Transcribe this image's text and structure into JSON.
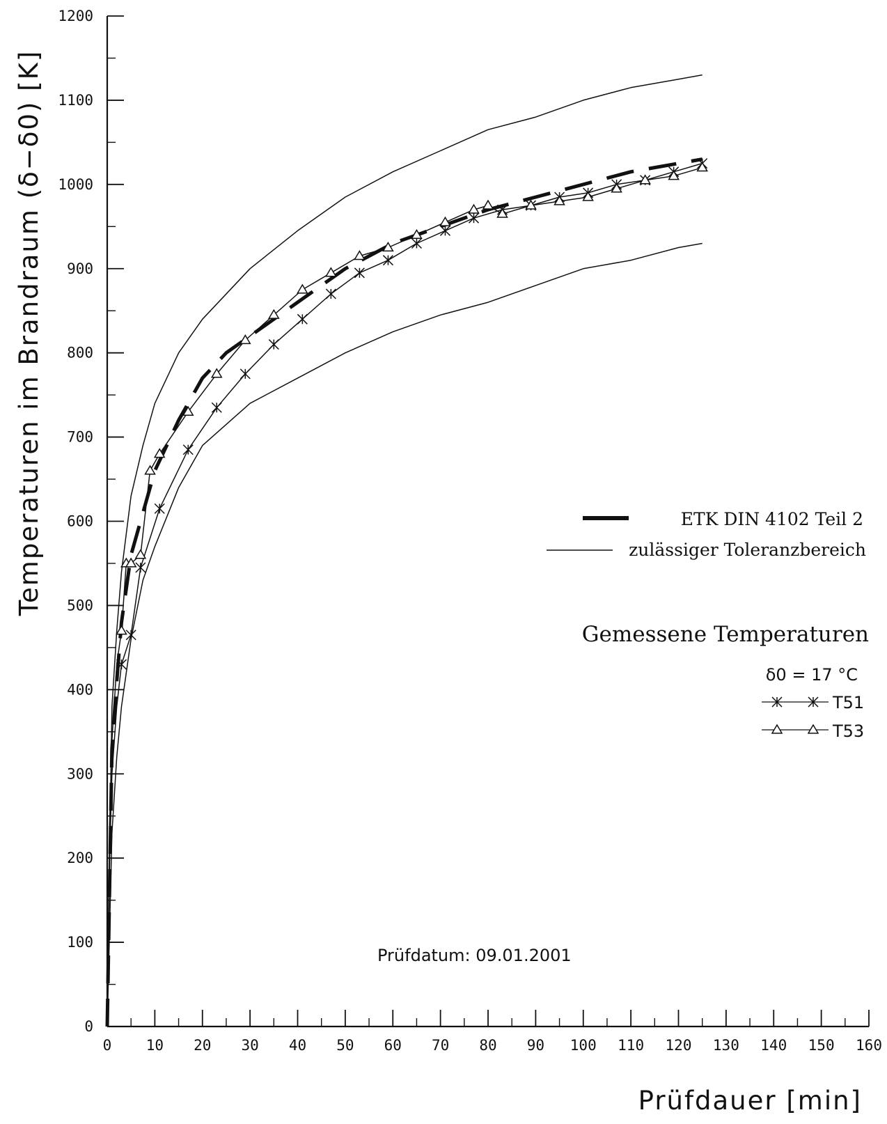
{
  "chart_data": {
    "type": "line",
    "xlabel": "Prüfdauer [min]",
    "ylabel": "Temperaturen im Brandraum (δ−δ0) [K]",
    "xlim": [
      0,
      160
    ],
    "ylim": [
      0,
      1200
    ],
    "x_ticks": [
      0,
      10,
      20,
      30,
      40,
      50,
      60,
      70,
      80,
      90,
      100,
      110,
      120,
      130,
      140,
      150,
      160
    ],
    "y_ticks": [
      0,
      100,
      200,
      300,
      400,
      500,
      600,
      700,
      800,
      900,
      1000,
      1100,
      1200
    ],
    "grid": false,
    "legend_position": "right",
    "legend": {
      "etk_label": "ETK DIN 4102 Teil 2",
      "tolerance_label": "zulässiger Toleranzbereich",
      "measured_title": "Gemessene Temperaturen",
      "delta0_label": "δ0 = 17 °C"
    },
    "annotation": "Prüfdatum: 09.01.2001",
    "series": [
      {
        "name": "ETK DIN 4102 Teil 2",
        "style": "thick-dashed",
        "x": [
          0,
          1,
          2,
          3,
          5,
          7.5,
          10,
          15,
          20,
          25,
          30,
          40,
          45,
          50,
          60,
          70,
          80,
          90,
          100,
          110,
          120,
          125
        ],
        "values": [
          0,
          330,
          410,
          480,
          560,
          610,
          660,
          720,
          770,
          800,
          820,
          860,
          880,
          900,
          930,
          950,
          970,
          985,
          1000,
          1015,
          1025,
          1030
        ]
      },
      {
        "name": "zulässiger Toleranzbereich",
        "style": "thin",
        "x": [
          0,
          1,
          2,
          3,
          5,
          7.5,
          10,
          15,
          20,
          30,
          40,
          50,
          60,
          70,
          80,
          90,
          100,
          110,
          120,
          125
        ],
        "values": [
          0,
          380,
          470,
          540,
          630,
          690,
          740,
          800,
          840,
          900,
          945,
          985,
          1015,
          1040,
          1065,
          1080,
          1100,
          1115,
          1125,
          1130
        ]
      },
      {
        "name": "zulässiger Toleranzbereich",
        "style": "thin",
        "x": [
          0,
          1,
          2,
          3,
          5,
          7.5,
          10,
          15,
          20,
          30,
          40,
          50,
          60,
          70,
          80,
          90,
          100,
          110,
          120,
          125
        ],
        "values": [
          0,
          230,
          320,
          380,
          460,
          530,
          570,
          640,
          690,
          740,
          770,
          800,
          825,
          845,
          860,
          880,
          900,
          910,
          925,
          930
        ]
      },
      {
        "name": "T51",
        "marker": "x",
        "x": [
          0,
          0.5,
          1,
          2,
          3,
          5,
          7,
          11,
          17,
          23,
          29,
          35,
          41,
          47,
          53,
          59,
          65,
          71,
          77,
          83,
          89,
          95,
          101,
          107,
          113,
          119,
          125
        ],
        "values": [
          0,
          200,
          300,
          380,
          430,
          465,
          545,
          615,
          685,
          735,
          775,
          810,
          840,
          870,
          895,
          910,
          930,
          945,
          960,
          970,
          975,
          985,
          990,
          1000,
          1005,
          1015,
          1025
        ]
      },
      {
        "name": "T53",
        "marker": "triangle",
        "x": [
          0,
          0.5,
          1,
          2,
          3,
          4,
          5,
          7,
          9,
          11,
          17,
          23,
          29,
          35,
          41,
          47,
          53,
          59,
          65,
          71,
          77,
          80,
          83,
          89,
          95,
          101,
          107,
          113,
          119,
          125
        ],
        "values": [
          0,
          240,
          340,
          430,
          470,
          550,
          550,
          560,
          660,
          680,
          730,
          775,
          815,
          845,
          875,
          895,
          915,
          925,
          940,
          955,
          970,
          975,
          965,
          975,
          980,
          985,
          995,
          1005,
          1010,
          1020
        ]
      }
    ]
  }
}
